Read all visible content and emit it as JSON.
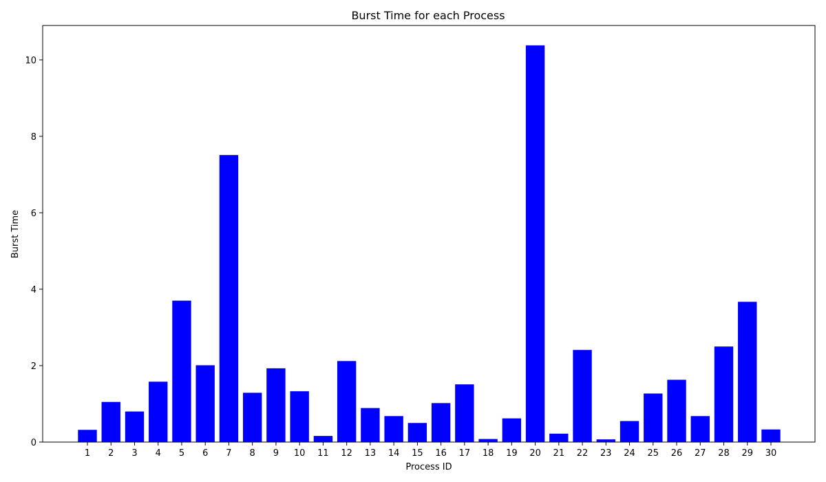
{
  "chart_data": {
    "type": "bar",
    "title": "Burst Time for each Process",
    "xlabel": "Process ID",
    "ylabel": "Burst Time",
    "categories": [
      "1",
      "2",
      "3",
      "4",
      "5",
      "6",
      "7",
      "8",
      "9",
      "10",
      "11",
      "12",
      "13",
      "14",
      "15",
      "16",
      "17",
      "18",
      "19",
      "20",
      "21",
      "22",
      "23",
      "24",
      "25",
      "26",
      "27",
      "28",
      "29",
      "30"
    ],
    "values": [
      0.32,
      1.05,
      0.8,
      1.58,
      3.7,
      2.01,
      7.51,
      1.29,
      1.93,
      1.33,
      0.16,
      2.12,
      0.89,
      0.68,
      0.5,
      1.02,
      1.51,
      0.08,
      0.62,
      10.38,
      0.22,
      2.41,
      0.07,
      0.55,
      1.27,
      1.63,
      0.68,
      2.5,
      3.67,
      0.33
    ],
    "ylim": [
      0,
      10.9
    ],
    "yticks": [
      0,
      2,
      4,
      6,
      8,
      10
    ],
    "grid": false,
    "bar_color": "#0000ff"
  }
}
